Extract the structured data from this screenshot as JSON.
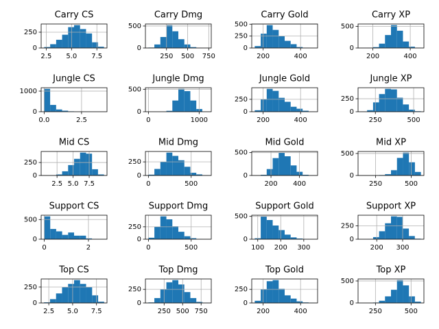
{
  "chart_data": [
    {
      "type": "histogram",
      "title": "Carry CS",
      "color": "#1f77b4",
      "grid": true,
      "bins": [
        2.3,
        2.89,
        3.48,
        4.07,
        4.66,
        5.25,
        5.84,
        6.43,
        7.02,
        7.61,
        8.2
      ],
      "values": [
        15,
        60,
        130,
        210,
        330,
        362,
        300,
        230,
        90,
        20
      ],
      "xlim": [
        2.0,
        8.5
      ],
      "ylim": [
        0,
        380
      ],
      "xticks": [
        2.5,
        {
          "value": 5,
          "label": "5.0"
        },
        7.5
      ],
      "yticks": [
        0,
        250
      ]
    },
    {
      "type": "histogram",
      "title": "Carry Dmg",
      "color": "#1f77b4",
      "grid": true,
      "bins": [
        35,
        106,
        177,
        248,
        319,
        390,
        461,
        532,
        603,
        674,
        745
      ],
      "values": [
        10,
        80,
        250,
        520,
        380,
        200,
        80,
        20,
        5,
        2
      ],
      "xlim": [
        0,
        780
      ],
      "ylim": [
        0,
        546
      ],
      "xticks": [
        250,
        500,
        750
      ],
      "yticks": [
        0,
        500
      ]
    },
    {
      "type": "histogram",
      "title": "Carry Gold",
      "color": "#1f77b4",
      "grid": true,
      "bins": [
        155,
        187,
        219,
        251,
        283,
        315,
        347,
        379,
        411,
        443,
        475
      ],
      "values": [
        40,
        300,
        480,
        380,
        250,
        150,
        80,
        20,
        5,
        2
      ],
      "xlim": [
        139,
        491
      ],
      "ylim": [
        0,
        504
      ],
      "xticks": [
        200,
        400
      ],
      "yticks": [
        0,
        250,
        500
      ]
    },
    {
      "type": "histogram",
      "title": "Carry XP",
      "color": "#1f77b4",
      "grid": true,
      "bins": [
        137,
        169,
        201,
        233,
        265,
        297,
        329,
        361,
        393,
        425,
        457
      ],
      "values": [
        2,
        5,
        20,
        100,
        300,
        530,
        400,
        150,
        30,
        5
      ],
      "xlim": [
        121,
        473
      ],
      "ylim": [
        0,
        556
      ],
      "xticks": [
        200,
        400
      ],
      "yticks": [
        0,
        500
      ]
    },
    {
      "type": "histogram",
      "title": "Jungle CS",
      "color": "#1f77b4",
      "grid": true,
      "bins": [
        0,
        0.4,
        0.8,
        1.2,
        1.6,
        2.0,
        2.4,
        2.8,
        3.2,
        3.6,
        4.0
      ],
      "values": [
        1110,
        330,
        110,
        50,
        20,
        10,
        5,
        2,
        1,
        1
      ],
      "xlim": [
        -0.2,
        4.2
      ],
      "ylim": [
        0,
        1165
      ],
      "xticks": [
        {
          "value": 0,
          "label": "0.0"
        },
        2.5
      ],
      "yticks": [
        0,
        1000
      ]
    },
    {
      "type": "histogram",
      "title": "Jungle Dmg",
      "color": "#1f77b4",
      "grid": true,
      "bins": [
        0,
        118,
        236,
        354,
        472,
        590,
        708,
        826,
        944,
        1062,
        1180
      ],
      "values": [
        2,
        2,
        5,
        20,
        250,
        510,
        460,
        250,
        60,
        5
      ],
      "xlim": [
        -59,
        1239
      ],
      "ylim": [
        0,
        535
      ],
      "xticks": [
        0,
        1000
      ],
      "yticks": [
        0,
        500
      ]
    },
    {
      "type": "histogram",
      "title": "Jungle Gold",
      "color": "#1f77b4",
      "grid": true,
      "bins": [
        155,
        187,
        219,
        251,
        283,
        315,
        347,
        379,
        411,
        443,
        475
      ],
      "values": [
        30,
        250,
        460,
        420,
        280,
        200,
        100,
        60,
        20,
        5
      ],
      "xlim": [
        139,
        491
      ],
      "ylim": [
        0,
        483
      ],
      "xticks": [
        200,
        400
      ],
      "yticks": [
        0,
        250
      ]
    },
    {
      "type": "histogram",
      "title": "Jungle XP",
      "color": "#1f77b4",
      "grid": true,
      "bins": [
        157,
        196,
        235,
        274,
        313,
        352,
        391,
        430,
        469,
        508,
        547
      ],
      "values": [
        5,
        30,
        180,
        340,
        440,
        430,
        270,
        140,
        40,
        10
      ],
      "xlim": [
        137,
        567
      ],
      "ylim": [
        0,
        462
      ],
      "xticks": [
        250,
        500
      ],
      "yticks": [
        0,
        250
      ]
    },
    {
      "type": "histogram",
      "title": "Mid CS",
      "color": "#1f77b4",
      "grid": true,
      "bins": [
        0.5,
        1.43,
        2.36,
        3.29,
        4.22,
        5.15,
        6.08,
        7.01,
        7.94,
        8.87,
        9.8
      ],
      "values": [
        2,
        5,
        20,
        80,
        200,
        320,
        440,
        420,
        120,
        20
      ],
      "xlim": [
        0.03,
        10.27
      ],
      "ylim": [
        0,
        462
      ],
      "xticks": [
        2.5,
        {
          "value": 5,
          "label": "5.0"
        },
        7.5
      ],
      "yticks": [
        0,
        250
      ]
    },
    {
      "type": "histogram",
      "title": "Mid Dmg",
      "color": "#1f77b4",
      "grid": true,
      "bins": [
        0,
        70,
        140,
        210,
        280,
        350,
        420,
        490,
        560,
        630,
        700
      ],
      "values": [
        15,
        120,
        250,
        420,
        360,
        280,
        160,
        50,
        20,
        5
      ],
      "xlim": [
        -35,
        735
      ],
      "ylim": [
        0,
        441
      ],
      "xticks": [
        0,
        500
      ],
      "yticks": [
        0,
        250
      ]
    },
    {
      "type": "histogram",
      "title": "Mid Gold",
      "color": "#1f77b4",
      "grid": true,
      "bins": [
        86,
        128,
        170,
        212,
        254,
        296,
        338,
        380,
        422,
        464,
        506
      ],
      "values": [
        2,
        15,
        140,
        380,
        500,
        420,
        220,
        80,
        15,
        5
      ],
      "xlim": [
        65,
        527
      ],
      "ylim": [
        0,
        525
      ],
      "xticks": [
        200,
        400
      ],
      "yticks": [
        0,
        500
      ]
    },
    {
      "type": "histogram",
      "title": "Mid XP",
      "color": "#1f77b4",
      "grid": true,
      "bins": [
        148,
        190,
        232,
        274,
        316,
        358,
        400,
        442,
        484,
        526,
        568
      ],
      "values": [
        2,
        2,
        5,
        10,
        30,
        120,
        400,
        520,
        300,
        80
      ],
      "xlim": [
        127,
        589
      ],
      "ylim": [
        0,
        546
      ],
      "xticks": [
        250,
        500
      ],
      "yticks": [
        0,
        500
      ]
    },
    {
      "type": "histogram",
      "title": "Support CS",
      "color": "#1f77b4",
      "grid": true,
      "bins": [
        0,
        0.27,
        0.54,
        0.81,
        1.08,
        1.35,
        1.62,
        1.89,
        2.16,
        2.43,
        2.7
      ],
      "values": [
        580,
        260,
        200,
        110,
        170,
        90,
        90,
        20,
        5,
        3
      ],
      "xlim": [
        -0.14,
        2.84
      ],
      "ylim": [
        0,
        609
      ],
      "xticks": [
        0,
        2
      ],
      "yticks": [
        0,
        500
      ]
    },
    {
      "type": "histogram",
      "title": "Support Dmg",
      "color": "#1f77b4",
      "grid": true,
      "bins": [
        0,
        70,
        140,
        210,
        280,
        350,
        420,
        490,
        560,
        630,
        700
      ],
      "values": [
        30,
        250,
        460,
        400,
        260,
        150,
        60,
        20,
        5,
        2
      ],
      "xlim": [
        -35,
        735
      ],
      "ylim": [
        0,
        483
      ],
      "xticks": [
        0,
        500
      ],
      "yticks": [
        0,
        250
      ]
    },
    {
      "type": "histogram",
      "title": "Support Gold",
      "color": "#1f77b4",
      "grid": true,
      "bins": [
        87,
        113,
        139,
        165,
        191,
        217,
        243,
        269,
        295,
        321,
        347
      ],
      "values": [
        20,
        500,
        420,
        300,
        200,
        100,
        40,
        15,
        5,
        2
      ],
      "xlim": [
        74,
        360
      ],
      "ylim": [
        0,
        525
      ],
      "xticks": [
        100,
        200,
        300
      ],
      "yticks": [
        0,
        500
      ]
    },
    {
      "type": "histogram",
      "title": "Support XP",
      "color": "#1f77b4",
      "grid": true,
      "bins": [
        140,
        163,
        186,
        209,
        232,
        255,
        278,
        301,
        324,
        347,
        370
      ],
      "values": [
        2,
        5,
        40,
        150,
        300,
        430,
        420,
        200,
        60,
        10
      ],
      "xlim": [
        128,
        382
      ],
      "ylim": [
        0,
        451
      ],
      "xticks": [
        200,
        300
      ],
      "yticks": [
        0,
        250
      ]
    },
    {
      "type": "histogram",
      "title": "Top CS",
      "color": "#1f77b4",
      "grid": true,
      "bins": [
        2,
        2.63,
        3.26,
        3.89,
        4.52,
        5.15,
        5.78,
        6.41,
        7.04,
        7.67,
        8.3
      ],
      "values": [
        10,
        60,
        150,
        250,
        300,
        360,
        300,
        250,
        120,
        20
      ],
      "xlim": [
        1.7,
        8.6
      ],
      "ylim": [
        0,
        378
      ],
      "xticks": [
        2.5,
        {
          "value": 5,
          "label": "5.0"
        },
        7.5
      ],
      "yticks": [
        0,
        250
      ]
    },
    {
      "type": "histogram",
      "title": "Top Dmg",
      "color": "#1f77b4",
      "grid": true,
      "bins": [
        37,
        118,
        199,
        280,
        361,
        442,
        523,
        604,
        685,
        766,
        847
      ],
      "values": [
        10,
        90,
        250,
        380,
        420,
        340,
        200,
        90,
        20,
        5
      ],
      "xlim": [
        -3,
        887
      ],
      "ylim": [
        0,
        441
      ],
      "xticks": [
        250,
        500,
        750
      ],
      "yticks": [
        0,
        250
      ]
    },
    {
      "type": "histogram",
      "title": "Top Gold",
      "color": "#1f77b4",
      "grid": true,
      "bins": [
        155,
        187,
        219,
        251,
        283,
        315,
        347,
        379,
        411,
        443,
        475
      ],
      "values": [
        40,
        250,
        400,
        420,
        260,
        140,
        80,
        30,
        10,
        5
      ],
      "xlim": [
        139,
        491
      ],
      "ylim": [
        0,
        441
      ],
      "xticks": [
        200,
        400
      ],
      "yticks": [
        0,
        250
      ]
    },
    {
      "type": "histogram",
      "title": "Top XP",
      "color": "#1f77b4",
      "grid": true,
      "bins": [
        149,
        191,
        233,
        275,
        317,
        359,
        401,
        443,
        485,
        527,
        569
      ],
      "values": [
        2,
        3,
        10,
        50,
        150,
        300,
        520,
        400,
        150,
        30
      ],
      "xlim": [
        128,
        590
      ],
      "ylim": [
        0,
        546
      ],
      "xticks": [
        250,
        500
      ],
      "yticks": [
        0,
        500
      ]
    }
  ]
}
